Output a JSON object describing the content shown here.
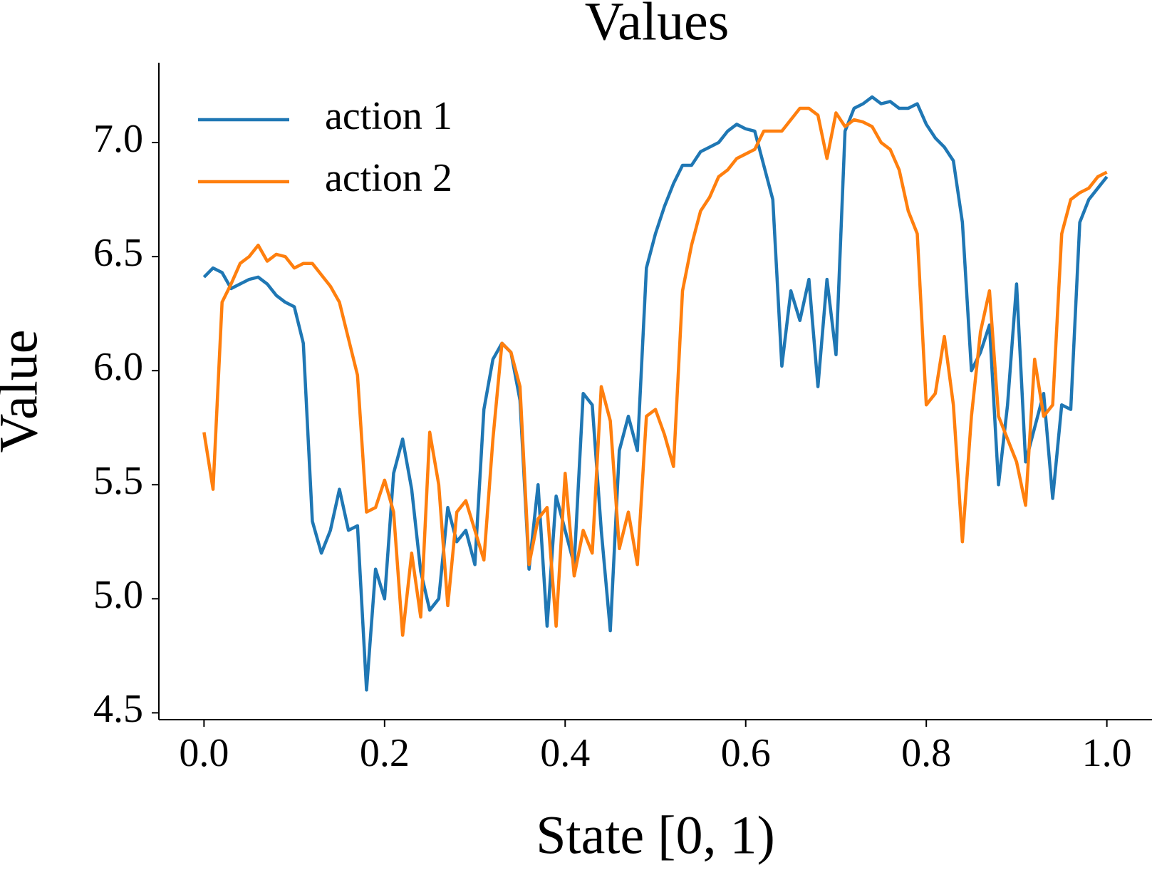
{
  "chart_data": {
    "type": "line",
    "title": "Values",
    "x_label": "State [0, 1)",
    "y_label": "Value",
    "x": [
      0,
      0.01,
      0.02,
      0.03,
      0.04,
      0.05,
      0.06,
      0.07,
      0.08,
      0.09,
      0.1,
      0.11,
      0.12,
      0.13,
      0.14,
      0.15,
      0.16,
      0.17,
      0.18,
      0.19,
      0.2,
      0.21,
      0.22,
      0.23,
      0.24,
      0.25,
      0.26,
      0.27,
      0.28,
      0.29,
      0.3,
      0.31,
      0.32,
      0.33,
      0.34,
      0.35,
      0.36,
      0.37,
      0.38,
      0.39,
      0.4,
      0.41,
      0.42,
      0.43,
      0.44,
      0.45,
      0.46,
      0.47,
      0.48,
      0.49,
      0.5,
      0.51,
      0.52,
      0.53,
      0.54,
      0.55,
      0.56,
      0.57,
      0.58,
      0.59,
      0.6,
      0.61,
      0.62,
      0.63,
      0.64,
      0.65,
      0.66,
      0.67,
      0.68,
      0.69,
      0.7,
      0.71,
      0.72,
      0.73,
      0.74,
      0.75,
      0.76,
      0.77,
      0.78,
      0.79,
      0.8,
      0.81,
      0.82,
      0.83,
      0.84,
      0.85,
      0.86,
      0.87,
      0.88,
      0.89,
      0.9,
      0.91,
      0.92,
      0.93,
      0.94,
      0.95,
      0.96,
      0.97,
      0.98,
      0.99,
      1
    ],
    "series": [
      {
        "name": "action 1",
        "color": "#1f77b4",
        "values": [
          6.41,
          6.45,
          6.43,
          6.36,
          6.38,
          6.4,
          6.41,
          6.38,
          6.33,
          6.3,
          6.28,
          6.12,
          5.34,
          5.2,
          5.3,
          5.48,
          5.3,
          5.32,
          4.6,
          5.13,
          5.0,
          5.55,
          5.7,
          5.48,
          5.12,
          4.95,
          5.0,
          5.4,
          5.25,
          5.3,
          5.15,
          5.83,
          6.05,
          6.12,
          6.08,
          5.87,
          5.13,
          5.5,
          4.88,
          5.45,
          5.3,
          5.15,
          5.9,
          5.85,
          5.3,
          4.86,
          5.65,
          5.8,
          5.65,
          6.45,
          6.6,
          6.72,
          6.82,
          6.9,
          6.9,
          6.96,
          6.98,
          7.0,
          7.05,
          7.08,
          7.06,
          7.05,
          6.9,
          6.75,
          6.02,
          6.35,
          6.22,
          6.4,
          5.93,
          6.4,
          6.07,
          7.05,
          7.15,
          7.17,
          7.2,
          7.17,
          7.18,
          7.15,
          7.15,
          7.17,
          7.08,
          7.02,
          6.98,
          6.92,
          6.65,
          6.0,
          6.08,
          6.2,
          5.5,
          5.85,
          6.38,
          5.6,
          5.75,
          5.9,
          5.44,
          5.85,
          5.83,
          6.65,
          6.75,
          6.8,
          6.85
        ]
      },
      {
        "name": "action 2",
        "color": "#ff7f0e",
        "values": [
          5.73,
          5.48,
          6.3,
          6.38,
          6.47,
          6.5,
          6.55,
          6.48,
          6.51,
          6.5,
          6.45,
          6.47,
          6.47,
          6.42,
          6.37,
          6.3,
          6.14,
          5.98,
          5.38,
          5.4,
          5.52,
          5.38,
          4.84,
          5.2,
          4.92,
          5.73,
          5.5,
          4.97,
          5.38,
          5.43,
          5.3,
          5.17,
          5.7,
          6.12,
          6.08,
          5.93,
          5.15,
          5.35,
          5.4,
          4.88,
          5.55,
          5.1,
          5.3,
          5.2,
          5.93,
          5.78,
          5.22,
          5.38,
          5.15,
          5.8,
          5.83,
          5.72,
          5.58,
          6.35,
          6.55,
          6.7,
          6.76,
          6.85,
          6.88,
          6.93,
          6.95,
          6.97,
          7.05,
          7.05,
          7.05,
          7.1,
          7.15,
          7.15,
          7.12,
          6.93,
          7.13,
          7.07,
          7.1,
          7.09,
          7.07,
          7.0,
          6.97,
          6.88,
          6.7,
          6.6,
          5.85,
          5.9,
          6.15,
          5.85,
          5.25,
          5.8,
          6.17,
          6.35,
          5.8,
          5.7,
          5.6,
          5.41,
          6.05,
          5.8,
          5.85,
          6.6,
          6.75,
          6.78,
          6.8,
          6.85,
          6.87
        ]
      }
    ],
    "xlim": [
      -0.05,
      1.05
    ],
    "ylim": [
      4.47,
      7.35
    ],
    "xticks": [
      {
        "value": 0,
        "label": "0.0"
      },
      0.2,
      0.4,
      0.6,
      0.8,
      {
        "value": 1,
        "label": "1.0"
      }
    ],
    "yticks": [
      4.5,
      {
        "value": 5,
        "label": "5.0"
      },
      5.5,
      {
        "value": 6,
        "label": "6.0"
      },
      6.5,
      {
        "value": 7,
        "label": "7.0"
      }
    ],
    "legend": "upper left",
    "grid": false
  }
}
